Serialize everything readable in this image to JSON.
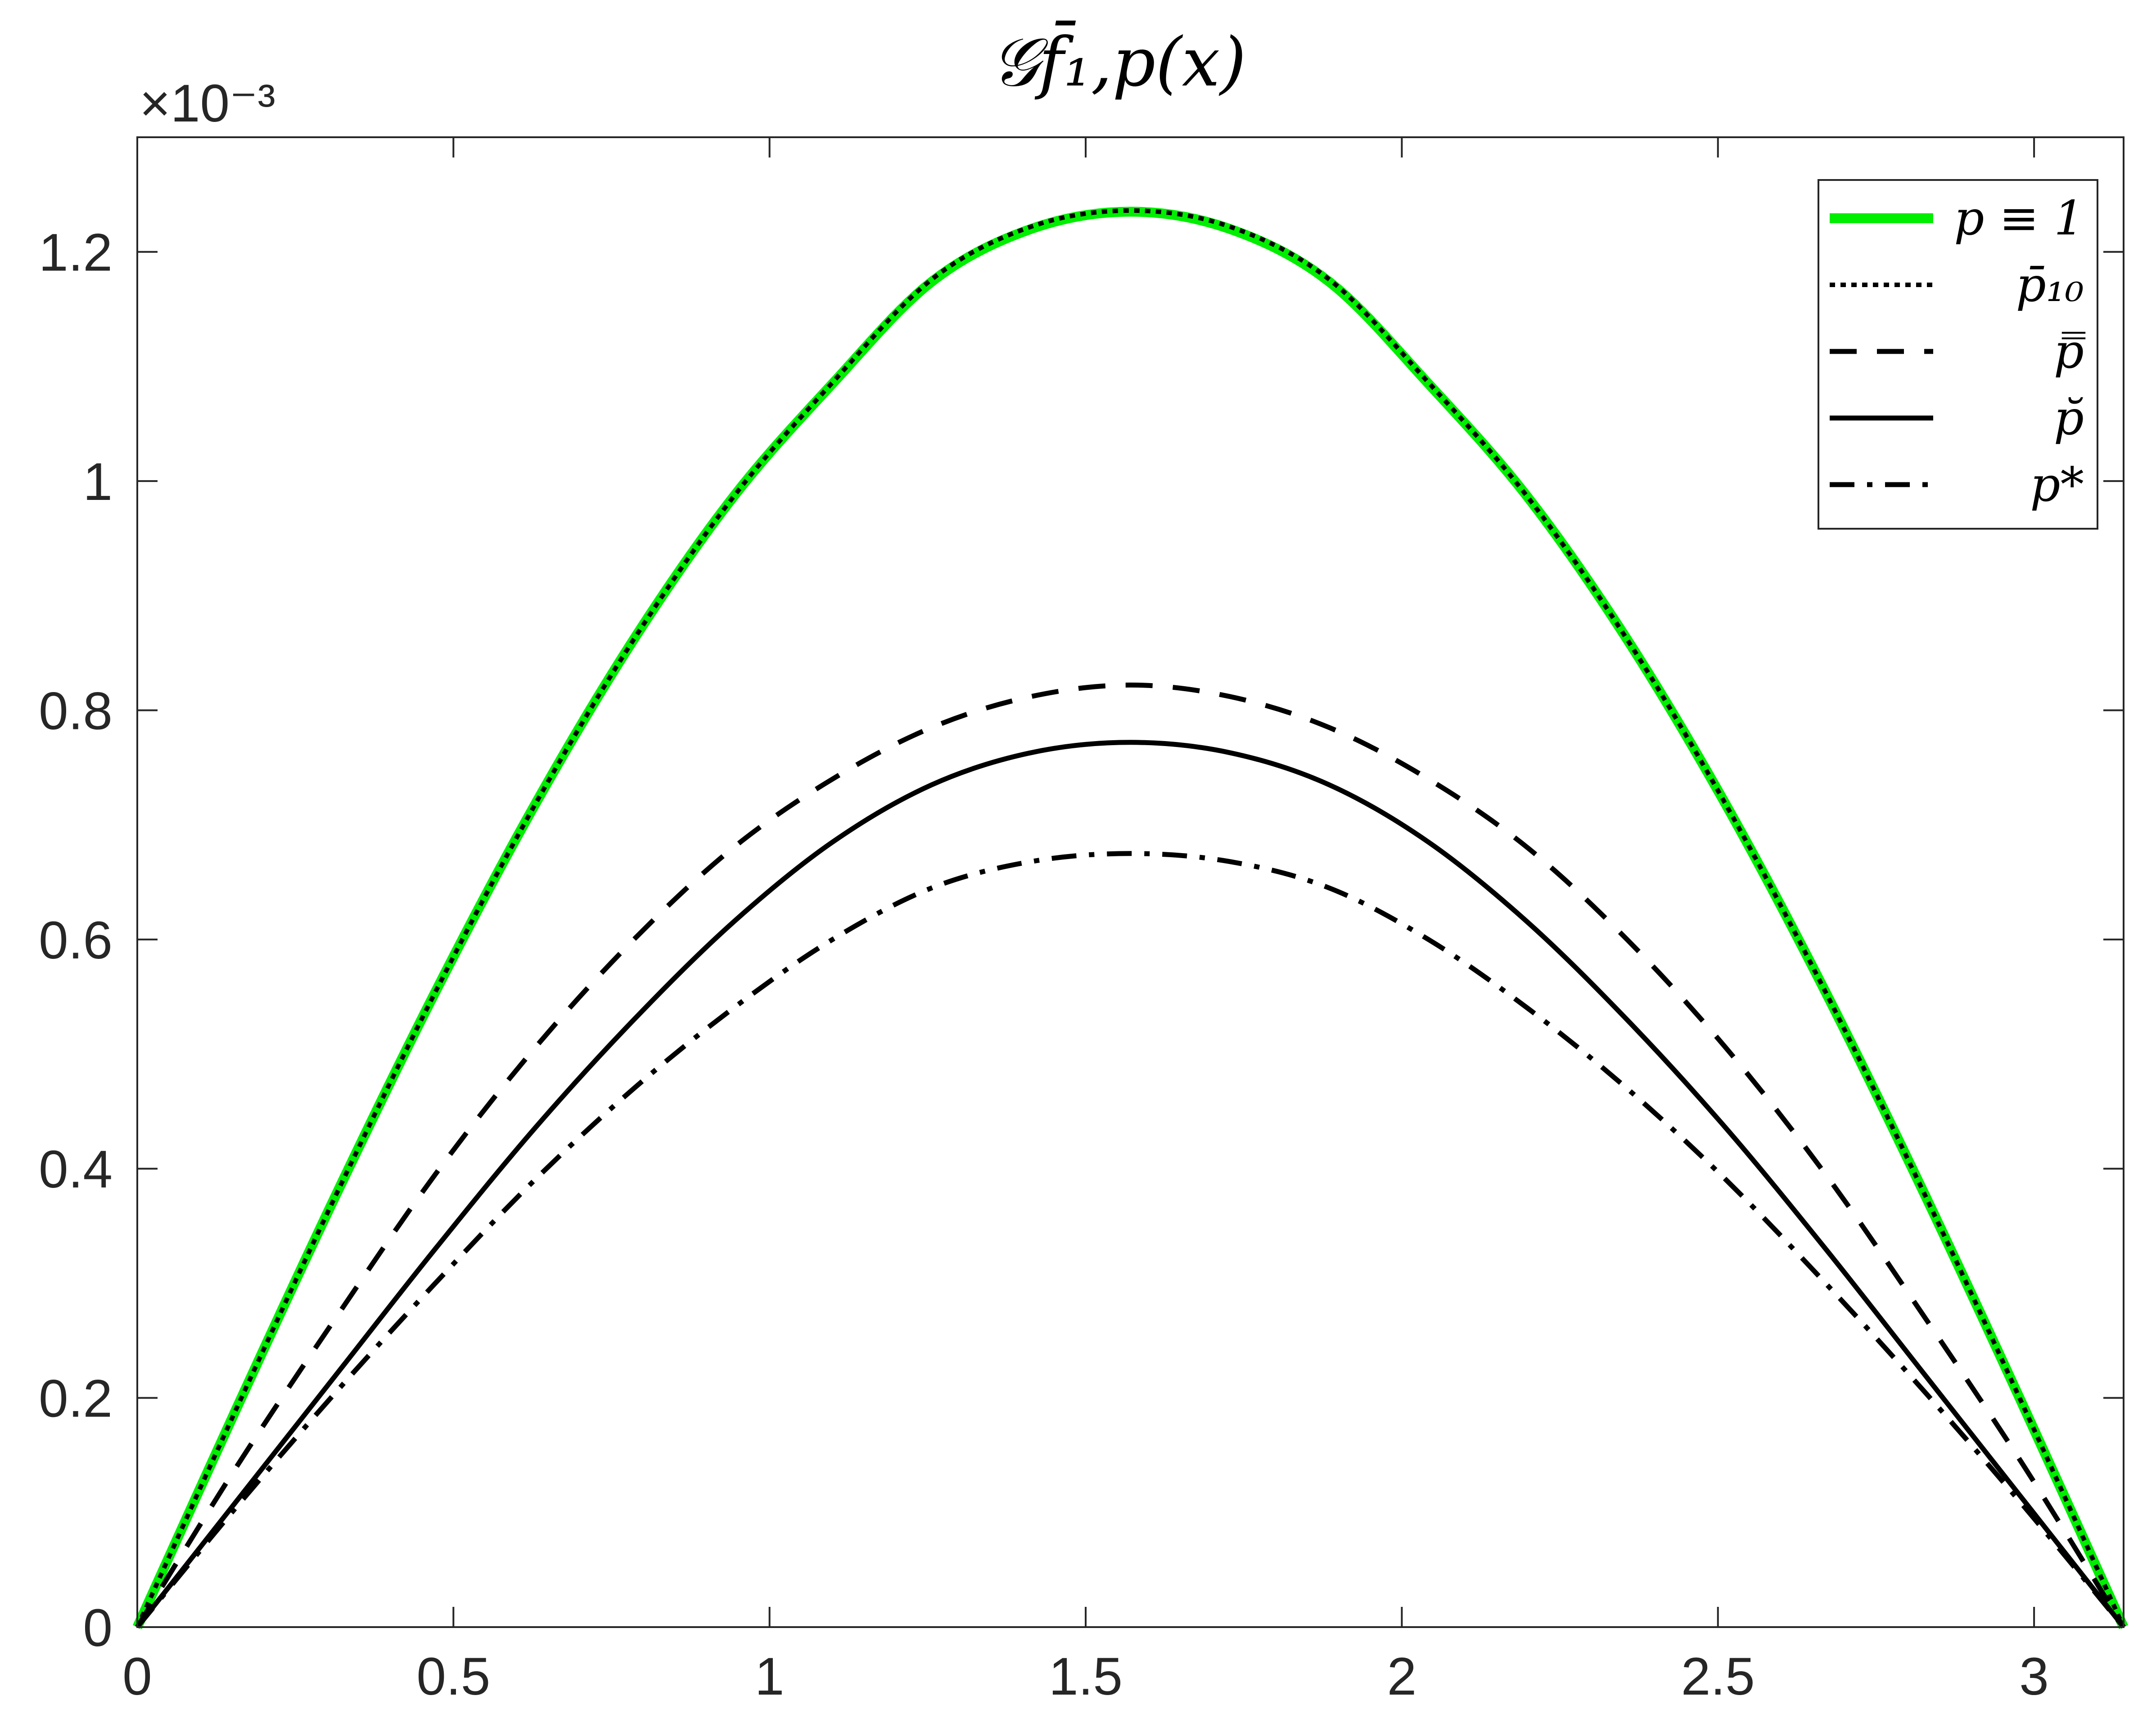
{
  "chart_data": {
    "type": "line",
    "title": "𝒢f̄₁,p(x)",
    "exponent_label": "×10⁻³",
    "xlabel": "",
    "ylabel": "",
    "xlim": [
      0,
      3.14159
    ],
    "ylim": [
      0,
      1.3
    ],
    "x_ticks": [
      0,
      0.5,
      1,
      1.5,
      2,
      2.5,
      3
    ],
    "x_tick_labels": [
      "0",
      "0.5",
      "1",
      "1.5",
      "2",
      "2.5",
      "3"
    ],
    "y_ticks": [
      0,
      0.2,
      0.4,
      0.6,
      0.8,
      1.0,
      1.2
    ],
    "y_tick_labels": [
      "0",
      "0.2",
      "0.4",
      "0.6",
      "0.8",
      "1",
      "1.2"
    ],
    "y_unit_scale": "1e-3",
    "grid": false,
    "legend_position": "top-right",
    "x": [
      0,
      0.15708,
      0.31416,
      0.47124,
      0.62832,
      0.7854,
      0.94248,
      1.09956,
      1.25664,
      1.41372,
      1.5708,
      1.72788,
      1.88496,
      2.04204,
      2.19911,
      2.35619,
      2.51327,
      2.67035,
      2.82743,
      2.98451,
      3.14159
    ],
    "series": [
      {
        "name": "p ≡ 1",
        "color": "#00ee00",
        "style": "solid-thick",
        "values": [
          0,
          0.191,
          0.377,
          0.554,
          0.717,
          0.862,
          0.986,
          1.085,
          1.174,
          1.22,
          1.235,
          1.22,
          1.174,
          1.085,
          0.986,
          0.862,
          0.717,
          0.554,
          0.377,
          0.191,
          0
        ]
      },
      {
        "name": "p̄₁₀",
        "color": "#000000",
        "style": "dotted",
        "values": [
          0,
          0.191,
          0.377,
          0.554,
          0.717,
          0.862,
          0.986,
          1.086,
          1.176,
          1.222,
          1.236,
          1.222,
          1.176,
          1.086,
          0.986,
          0.862,
          0.717,
          0.554,
          0.377,
          0.191,
          0
        ]
      },
      {
        "name": "p̿",
        "color": "#000000",
        "style": "dashed",
        "values": [
          0,
          0.14,
          0.27,
          0.395,
          0.505,
          0.6,
          0.68,
          0.74,
          0.785,
          0.812,
          0.822,
          0.812,
          0.785,
          0.74,
          0.68,
          0.6,
          0.505,
          0.395,
          0.27,
          0.14,
          0
        ]
      },
      {
        "name": "p̆",
        "color": "#000000",
        "style": "solid",
        "values": [
          0,
          0.11,
          0.22,
          0.33,
          0.435,
          0.53,
          0.615,
          0.685,
          0.735,
          0.763,
          0.772,
          0.763,
          0.735,
          0.685,
          0.615,
          0.53,
          0.435,
          0.33,
          0.22,
          0.11,
          0
        ]
      },
      {
        "name": "p*",
        "color": "#000000",
        "style": "dashdot",
        "values": [
          0,
          0.105,
          0.205,
          0.3,
          0.39,
          0.47,
          0.54,
          0.6,
          0.645,
          0.668,
          0.675,
          0.668,
          0.645,
          0.6,
          0.54,
          0.47,
          0.39,
          0.3,
          0.205,
          0.105,
          0
        ]
      }
    ]
  }
}
